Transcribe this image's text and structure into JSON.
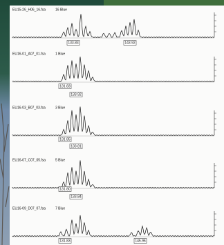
{
  "panels": [
    {
      "sample": "EU15-26_H06_16.fsa",
      "dye": "16 Blue",
      "peaks": [
        "133.83",
        "143.92"
      ]
    },
    {
      "sample": "EU16-01_A07_01.fsa",
      "dye": "1 Blue",
      "peaks": [
        "131.83",
        "133.92"
      ]
    },
    {
      "sample": "EU16-03_B07_03.fsa",
      "dye": "3 Blue",
      "peaks": [
        "131.85",
        "133.81"
      ]
    },
    {
      "sample": "EU16-07_C07_05.fsa",
      "dye": "5 Blue",
      "peaks": [
        "131.80",
        "133.84"
      ]
    },
    {
      "sample": "EU16-09_D07_07.fsa",
      "dye": "7 Blue",
      "peaks": [
        "131.83",
        "145.96"
      ]
    }
  ]
}
